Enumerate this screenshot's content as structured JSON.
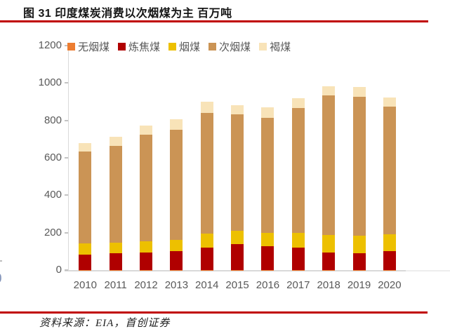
{
  "figure": {
    "title": "图 31 印度煤炭消费以次烟煤为主 百万吨",
    "source": "资料来源：EIA，首创证券"
  },
  "accent": {
    "rule_color": "#C00000",
    "axis_text_color": "#595959"
  },
  "artifacts": {
    "partial_glyph": "0"
  },
  "chart_data": {
    "type": "bar",
    "stacked": true,
    "title": "图 31 印度煤炭消费以次烟煤为主 百万吨",
    "unit": "百万吨",
    "categories": [
      "2010",
      "2011",
      "2012",
      "2013",
      "2014",
      "2015",
      "2016",
      "2017",
      "2018",
      "2019",
      "2020"
    ],
    "series": [
      {
        "name": "无烟煤",
        "color": "#ED7D31",
        "values": [
          1,
          1,
          1,
          1,
          1,
          1,
          1,
          1,
          1,
          1,
          1
        ]
      },
      {
        "name": "炼焦煤",
        "color": "#B00000",
        "values": [
          82,
          89,
          93,
          102,
          118,
          137,
          127,
          120,
          93,
          89,
          99
        ]
      },
      {
        "name": "烟煤",
        "color": "#EDC000",
        "values": [
          59,
          58,
          59,
          57,
          75,
          73,
          72,
          77,
          94,
          95,
          90
        ]
      },
      {
        "name": "次烟煤",
        "color": "#CB9455",
        "values": [
          492,
          516,
          570,
          589,
          646,
          620,
          614,
          670,
          746,
          740,
          685
        ]
      },
      {
        "name": "褐煤",
        "color": "#F8E3B8",
        "values": [
          46,
          47,
          48,
          56,
          59,
          49,
          57,
          51,
          50,
          53,
          49
        ]
      }
    ],
    "totals": [
      680,
      711,
      771,
      805,
      899,
      880,
      871,
      919,
      984,
      978,
      924
    ],
    "ylim": [
      0,
      1200
    ],
    "ytick_step": 200,
    "grid": false,
    "legend_position": "top"
  }
}
